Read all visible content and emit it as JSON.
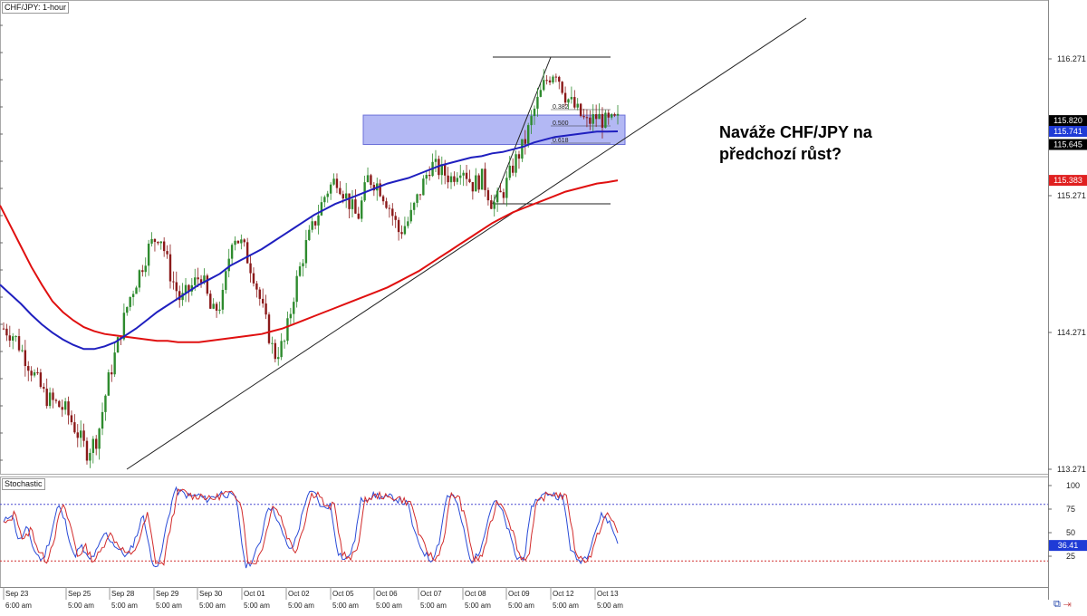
{
  "title": "CHF/JPY: 1-hour",
  "stoch_title": "Stochastic",
  "annotation": {
    "line1": "Naváže CHF/JPY na",
    "line2": "předchozí růst?"
  },
  "colors": {
    "bull": "#2e8b2e",
    "bear": "#8b1a1a",
    "ma_fast": "#1f1fbf",
    "ma_slow": "#e01010",
    "zone": "#9aa0f0",
    "stoch_k": "#2a4bd7",
    "stoch_d": "#d22b2b",
    "badge_black": "#000000",
    "badge_blue": "#1f3bd6",
    "badge_red": "#e02020"
  },
  "chart_data": [
    {
      "type": "candlestick",
      "title": "CHF/JPY: 1-hour",
      "ylim": [
        113.2,
        116.6
      ],
      "yticks": [
        "116.271",
        "115.271",
        "114.271",
        "113.271"
      ],
      "price_tags": [
        {
          "value": "115.820",
          "color": "badge_black"
        },
        {
          "value": "115.741",
          "color": "badge_blue"
        },
        {
          "value": "115.645",
          "color": "badge_black"
        },
        {
          "value": "115.383",
          "color": "badge_red"
        }
      ],
      "x_labels_top": [
        "Sep 23",
        "Sep 25",
        "Sep 28",
        "Sep 29",
        "Sep 30",
        "Oct 01",
        "Oct 02",
        "Oct 05",
        "Oct 06",
        "Oct 07",
        "Oct 08",
        "Oct 09",
        "Oct 12",
        "Oct 13"
      ],
      "x_labels_bottom": [
        "6:00 am",
        "5:00 am",
        "5:00 am",
        "5:00 am",
        "5:00 am",
        "5:00 am",
        "5:00 am",
        "5:00 am",
        "5:00 am",
        "5:00 am",
        "5:00 am",
        "5:00 am",
        "5:00 am",
        "5:00 am"
      ],
      "close_path": [
        114.3,
        114.25,
        114.1,
        113.95,
        113.8,
        113.75,
        113.7,
        113.55,
        113.4,
        113.5,
        113.9,
        114.2,
        114.5,
        114.7,
        114.9,
        115.0,
        114.7,
        114.5,
        114.6,
        114.7,
        114.4,
        114.5,
        115.0,
        114.9,
        114.7,
        114.4,
        114.1,
        114.2,
        114.6,
        114.9,
        115.1,
        115.3,
        115.4,
        115.25,
        115.1,
        115.4,
        115.35,
        115.2,
        115.0,
        115.1,
        115.3,
        115.5,
        115.45,
        115.4,
        115.5,
        115.35,
        115.4,
        115.2,
        115.3,
        115.5,
        115.65,
        115.9,
        116.1,
        116.2,
        116.0,
        115.9,
        115.8,
        115.85,
        115.8,
        115.82
      ],
      "ma_fast": [
        114.62,
        114.55,
        114.48,
        114.4,
        114.33,
        114.27,
        114.22,
        114.18,
        114.15,
        114.15,
        114.17,
        114.2,
        114.25,
        114.3,
        114.36,
        114.42,
        114.47,
        114.52,
        114.57,
        114.62,
        114.66,
        114.7,
        114.76,
        114.8,
        114.84,
        114.88,
        114.93,
        114.98,
        115.03,
        115.08,
        115.13,
        115.17,
        115.21,
        115.24,
        115.27,
        115.3,
        115.33,
        115.36,
        115.38,
        115.4,
        115.43,
        115.46,
        115.49,
        115.51,
        115.53,
        115.55,
        115.56,
        115.58,
        115.59,
        115.61,
        115.63,
        115.66,
        115.68,
        115.7,
        115.71,
        115.72,
        115.73,
        115.74,
        115.74,
        115.741
      ],
      "ma_slow": [
        115.2,
        115.05,
        114.9,
        114.75,
        114.62,
        114.5,
        114.42,
        114.36,
        114.31,
        114.28,
        114.26,
        114.25,
        114.24,
        114.23,
        114.22,
        114.21,
        114.21,
        114.2,
        114.2,
        114.2,
        114.21,
        114.22,
        114.23,
        114.24,
        114.25,
        114.26,
        114.28,
        114.3,
        114.33,
        114.36,
        114.39,
        114.42,
        114.45,
        114.48,
        114.51,
        114.54,
        114.57,
        114.6,
        114.64,
        114.68,
        114.72,
        114.77,
        114.82,
        114.87,
        114.92,
        114.97,
        115.02,
        115.07,
        115.11,
        115.15,
        115.18,
        115.21,
        115.24,
        115.27,
        115.3,
        115.32,
        115.34,
        115.36,
        115.37,
        115.383
      ],
      "fib_levels": [
        "0.382",
        "0.500",
        "0.618"
      ],
      "zone": [
        115.645,
        115.86
      ]
    },
    {
      "type": "line",
      "title": "Stochastic",
      "ylim": [
        0,
        100
      ],
      "yticks": [
        "100",
        "75",
        "50",
        "25"
      ],
      "levels": [
        80,
        20
      ],
      "current": "36.41",
      "k": [
        60,
        72,
        40,
        55,
        30,
        20,
        45,
        80,
        60,
        25,
        35,
        20,
        30,
        50,
        40,
        30,
        25,
        45,
        70,
        20,
        15,
        60,
        95,
        92,
        88,
        90,
        85,
        88,
        92,
        90,
        85,
        15,
        20,
        40,
        80,
        70,
        45,
        30,
        55,
        90,
        92,
        75,
        80,
        30,
        20,
        35,
        85,
        88,
        90,
        86,
        88,
        84,
        80,
        45,
        30,
        20,
        40,
        90,
        88,
        60,
        20,
        25,
        55,
        85,
        75,
        50,
        22,
        25,
        80,
        88,
        92,
        90,
        86,
        30,
        20,
        25,
        50,
        70,
        60,
        40
      ]
    }
  ]
}
